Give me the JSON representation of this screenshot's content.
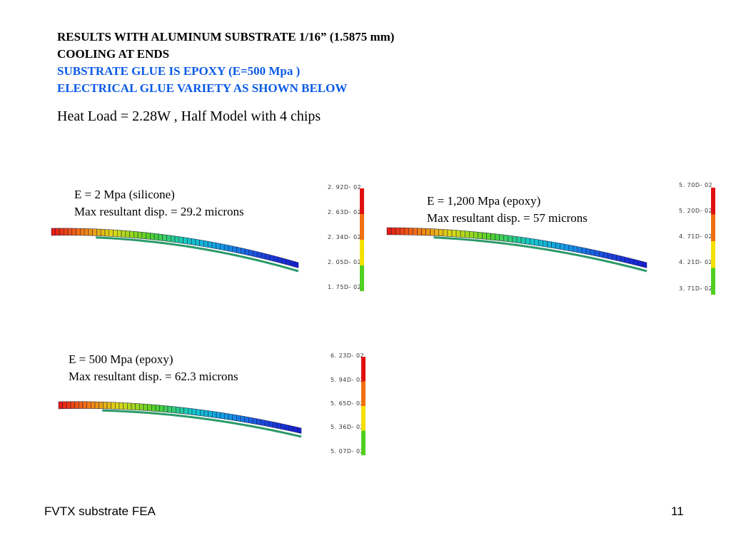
{
  "header": {
    "line1": "RESULTS WITH ALUMINUM SUBSTRATE 1/16” (1.5875 mm)",
    "line2": "COOLING AT ENDS",
    "line3": "SUBSTRATE GLUE IS EPOXY (E=500 Mpa )",
    "line4": "ELECTRICAL GLUE VARIETY AS SHOWN BELOW"
  },
  "colors": {
    "header_black": "#000000",
    "header_blue": "#0a5ae6",
    "scale_red": "#e01010",
    "scale_orange": "#f07010",
    "scale_yellow": "#f5e000",
    "scale_green": "#50d020"
  },
  "heat_load": "Heat Load = 2.28W , Half Model with 4 chips",
  "panels": [
    {
      "id": "silicone",
      "caption_line1": "E = 2 Mpa (silicone)",
      "caption_line2": "Max resultant disp. = 29.2 microns",
      "scale_ticks": [
        "2. 92D- 02",
        "2. 63D- 02",
        "2. 34D- 02",
        "2. 05D- 02",
        "1. 75D- 02"
      ]
    },
    {
      "id": "epoxy-1200",
      "caption_line1": "E = 1,200 Mpa (epoxy)",
      "caption_line2": "Max resultant disp. = 57 microns",
      "scale_ticks": [
        "5. 70D- 02",
        "5. 20D- 02",
        "4. 71D- 02",
        "4. 21D- 02",
        "3. 71D- 02"
      ]
    },
    {
      "id": "epoxy-500",
      "caption_line1": "E = 500 Mpa (epoxy)",
      "caption_line2": "Max resultant disp. = 62.3 microns",
      "scale_ticks": [
        "6. 23D- 02",
        "5. 94D- 02",
        "5. 65D- 02",
        "5. 36D- 02",
        "5. 07D- 02"
      ]
    }
  ],
  "footer": {
    "left": "FVTX substrate FEA",
    "page_number": "11"
  }
}
